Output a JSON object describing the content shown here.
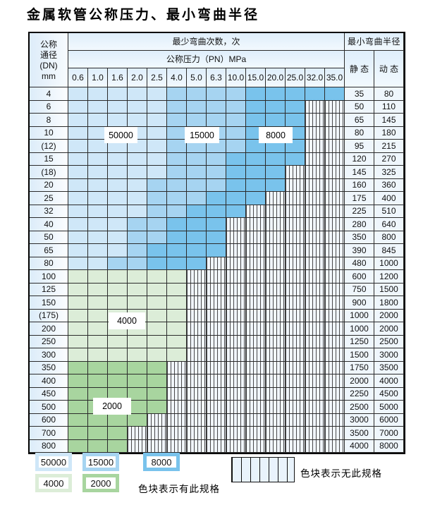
{
  "title": "金属软管公称压力、最小弯曲半径",
  "table": {
    "corner_lines": [
      "公称",
      "通径",
      "(DN)",
      "mm"
    ],
    "bend_header": "最少弯曲次数，次",
    "pressure_header": "公称压力（PN）MPa",
    "radius_header": "最小弯曲半径",
    "static_label": "静 态",
    "dynamic_label": "动 态",
    "pressures": [
      "0.6",
      "1.0",
      "1.6",
      "2.0",
      "2.5",
      "4.0",
      "5.0",
      "6.3",
      "10.0",
      "15.0",
      "20.0",
      "25.0",
      "32.0",
      "35.0"
    ],
    "rows": [
      {
        "dn": "4",
        "end": 14,
        "med": 5,
        "dark": 9,
        "zone": "blue",
        "static": "35",
        "dynamic": "80"
      },
      {
        "dn": "6",
        "end": 12,
        "med": 5,
        "dark": 9,
        "zone": "blue",
        "static": "50",
        "dynamic": "110"
      },
      {
        "dn": "8",
        "end": 12,
        "med": 5,
        "dark": 9,
        "zone": "blue",
        "static": "65",
        "dynamic": "145"
      },
      {
        "dn": "10",
        "end": 12,
        "med": 5,
        "dark": 9,
        "zone": "blue",
        "static": "80",
        "dynamic": "180"
      },
      {
        "dn": "(12)",
        "end": 12,
        "med": 5,
        "dark": 9,
        "zone": "blue",
        "static": "95",
        "dynamic": "215"
      },
      {
        "dn": "15",
        "end": 12,
        "med": 5,
        "dark": 8,
        "zone": "blue",
        "static": "120",
        "dynamic": "270"
      },
      {
        "dn": "(18)",
        "end": 11,
        "med": 5,
        "dark": 8,
        "zone": "blue",
        "static": "145",
        "dynamic": "325"
      },
      {
        "dn": "20",
        "end": 11,
        "med": 4,
        "dark": 8,
        "zone": "blue",
        "static": "160",
        "dynamic": "360"
      },
      {
        "dn": "25",
        "end": 10,
        "med": 4,
        "dark": 7,
        "zone": "blue",
        "static": "175",
        "dynamic": "400"
      },
      {
        "dn": "32",
        "end": 9,
        "med": 4,
        "dark": 6,
        "zone": "blue",
        "static": "225",
        "dynamic": "510"
      },
      {
        "dn": "40",
        "end": 8,
        "med": 3,
        "dark": 5,
        "zone": "blue",
        "static": "280",
        "dynamic": "640"
      },
      {
        "dn": "50",
        "end": 8,
        "med": 3,
        "dark": 5,
        "zone": "blue",
        "static": "350",
        "dynamic": "800"
      },
      {
        "dn": "65",
        "end": 8,
        "med": 3,
        "dark": 4,
        "zone": "blue",
        "static": "390",
        "dynamic": "845"
      },
      {
        "dn": "80",
        "end": 7,
        "med": 2,
        "dark": 4,
        "zone": "blue",
        "static": "480",
        "dynamic": "1000"
      },
      {
        "dn": "100",
        "end": 6,
        "zone": "green-light",
        "static": "600",
        "dynamic": "1200"
      },
      {
        "dn": "125",
        "end": 6,
        "zone": "green-light",
        "static": "750",
        "dynamic": "1500"
      },
      {
        "dn": "150",
        "end": 6,
        "zone": "green-light",
        "static": "900",
        "dynamic": "1800"
      },
      {
        "dn": "(175)",
        "end": 6,
        "zone": "green-light",
        "static": "1000",
        "dynamic": "2000"
      },
      {
        "dn": "200",
        "end": 6,
        "zone": "green-light",
        "static": "1000",
        "dynamic": "2000"
      },
      {
        "dn": "250",
        "end": 6,
        "zone": "green-light",
        "static": "1250",
        "dynamic": "2500"
      },
      {
        "dn": "300",
        "end": 6,
        "zone": "green-light",
        "static": "1500",
        "dynamic": "3000"
      },
      {
        "dn": "350",
        "end": 5,
        "zone": "green-dark",
        "static": "1750",
        "dynamic": "3500"
      },
      {
        "dn": "400",
        "end": 5,
        "zone": "green-dark",
        "static": "2000",
        "dynamic": "4000"
      },
      {
        "dn": "450",
        "end": 5,
        "zone": "green-dark",
        "static": "2250",
        "dynamic": "4500"
      },
      {
        "dn": "500",
        "end": 5,
        "zone": "green-dark",
        "static": "2500",
        "dynamic": "5000"
      },
      {
        "dn": "600",
        "end": 4,
        "zone": "green-dark",
        "static": "3000",
        "dynamic": "6000"
      },
      {
        "dn": "700",
        "end": 3,
        "zone": "green-dark",
        "static": "3500",
        "dynamic": "7000"
      },
      {
        "dn": "800",
        "end": 3,
        "zone": "green-dark",
        "static": "4000",
        "dynamic": "8000"
      }
    ]
  },
  "cycle_labels": {
    "c50000": "50000",
    "c15000": "15000",
    "c8000": "8000",
    "c4000": "4000",
    "c2000": "2000"
  },
  "legend": {
    "s50000": "50000",
    "s15000": "15000",
    "s8000": "8000",
    "s4000": "4000",
    "s2000": "2000",
    "has_spec": "色块表示有此规格",
    "no_spec": "色块表示无此规格"
  },
  "colors": {
    "blue_light": "#cfe7f8",
    "blue_med": "#a6d4f1",
    "blue_dark": "#79c3ec",
    "green_light": "#dcedd8",
    "green_dark": "#a8d59f",
    "stripe_bg": "#f1f6fc"
  }
}
